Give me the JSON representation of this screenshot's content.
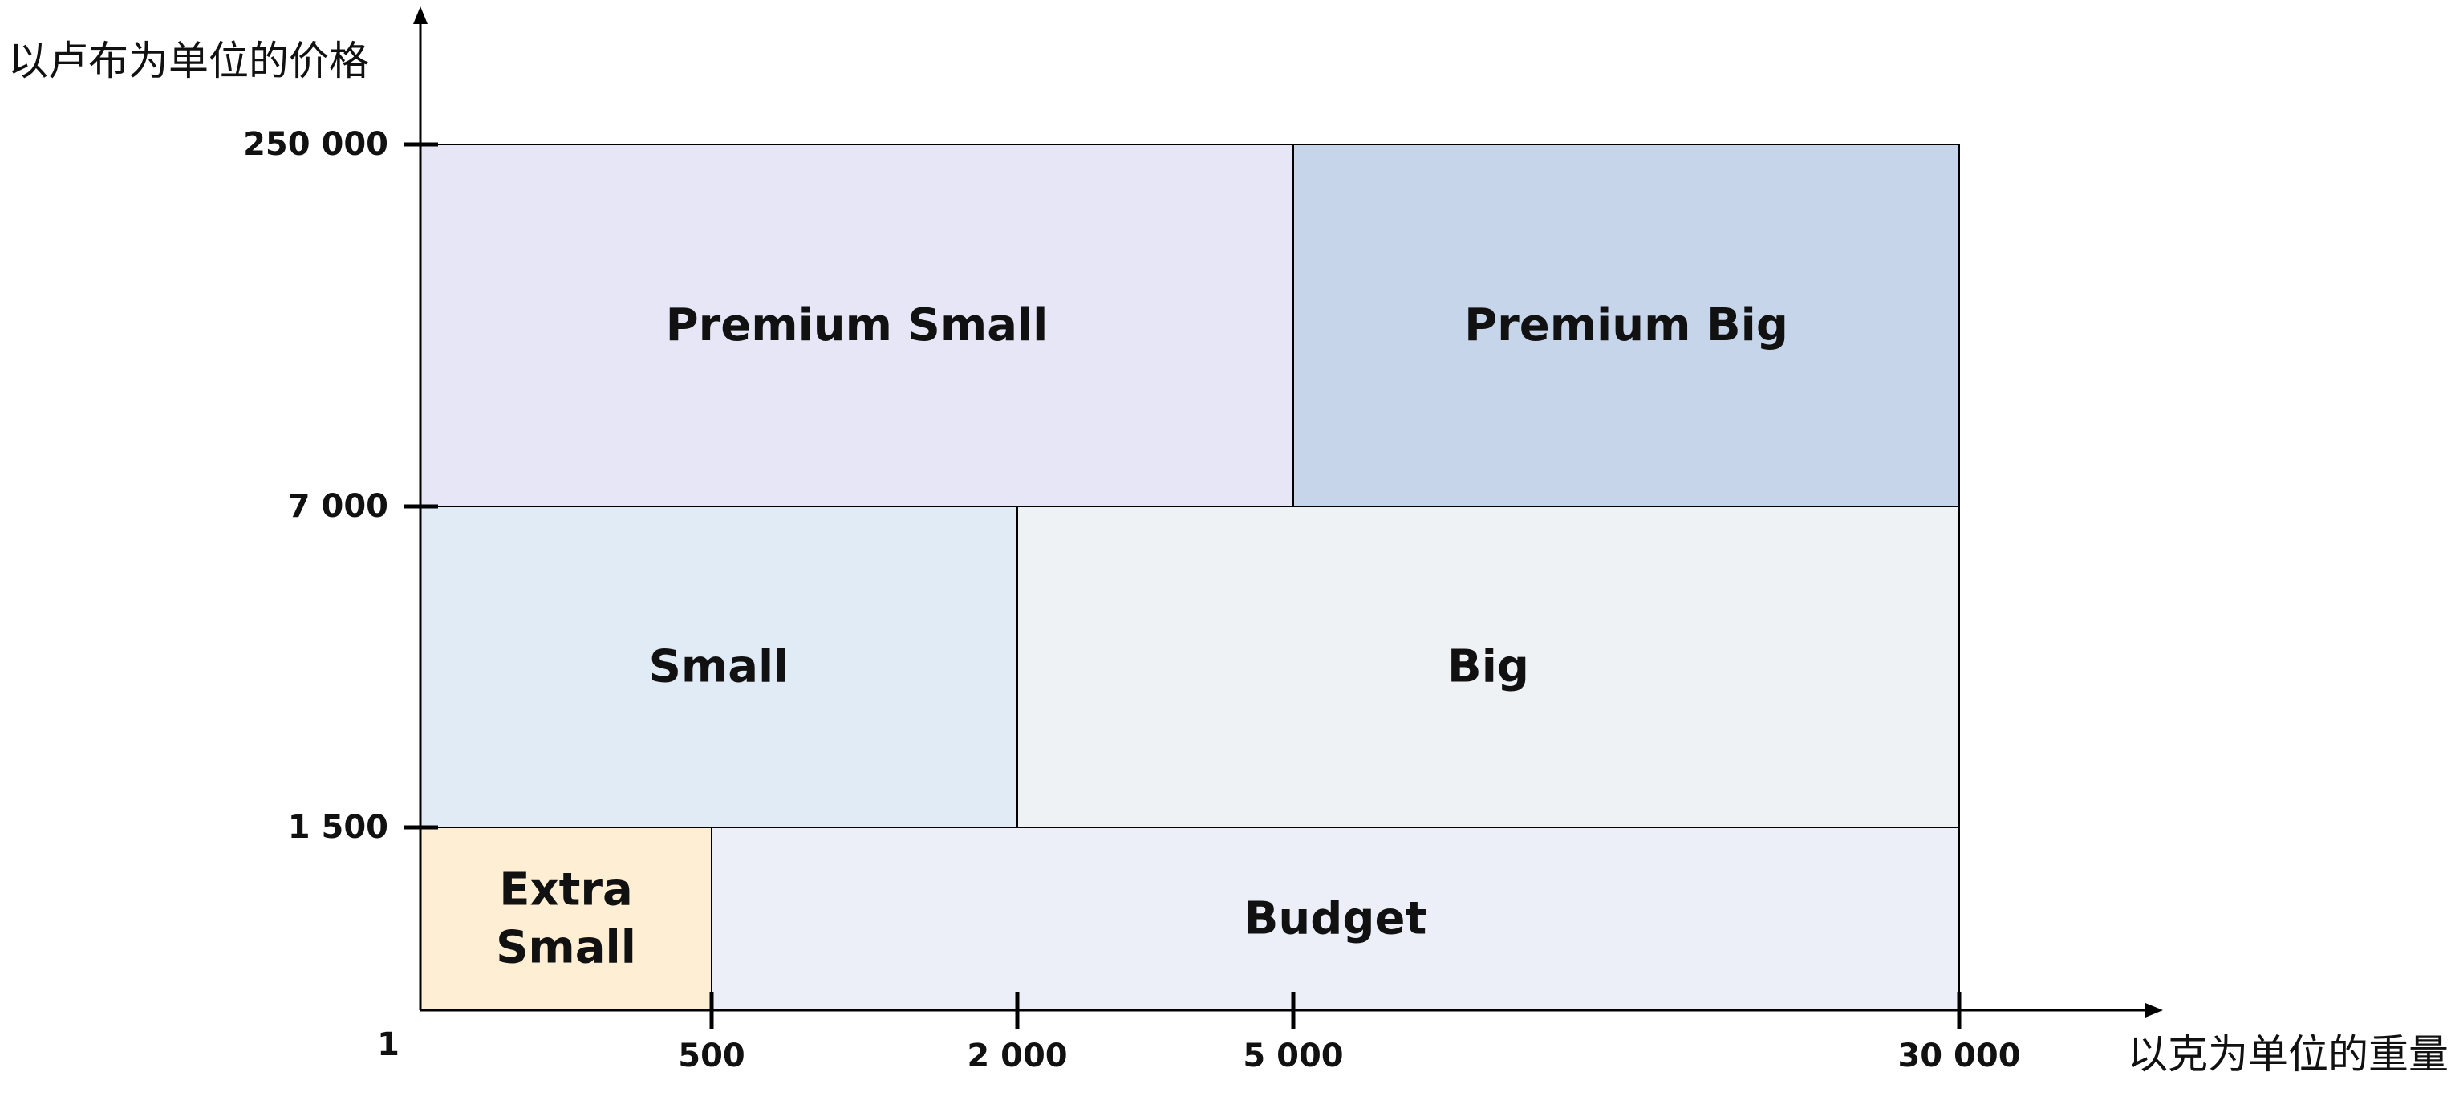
{
  "axes": {
    "y_title": "以卢布为单位的价格",
    "x_title": "以克为单位的重量",
    "origin_label": "1",
    "y_ticks": [
      {
        "key": "250000",
        "label": "250 000"
      },
      {
        "key": "7000",
        "label": "7 000"
      },
      {
        "key": "1500",
        "label": "1 500"
      }
    ],
    "x_ticks": [
      {
        "key": "500",
        "label": "500"
      },
      {
        "key": "2000",
        "label": "2 000"
      },
      {
        "key": "5000",
        "label": "5 000"
      },
      {
        "key": "30000",
        "label": "30 000"
      }
    ]
  },
  "segments": [
    {
      "id": "premium-small",
      "lines": [
        "Premium Small"
      ],
      "x_from": "1",
      "x_to": "5000",
      "y_from": "7000",
      "y_to": "250000",
      "color": "#e6e6f7"
    },
    {
      "id": "premium-big",
      "lines": [
        "Premium Big"
      ],
      "x_from": "5000",
      "x_to": "30000",
      "y_from": "7000",
      "y_to": "250000",
      "color": "#c7d5eb"
    },
    {
      "id": "small",
      "lines": [
        "Small"
      ],
      "x_from": "1",
      "x_to": "2000",
      "y_from": "1500",
      "y_to": "7000",
      "color": "#e0ebf6"
    },
    {
      "id": "big",
      "lines": [
        "Big"
      ],
      "x_from": "2000",
      "x_to": "30000",
      "y_from": "1500",
      "y_to": "7000",
      "color": "#eef2f5"
    },
    {
      "id": "extra-small",
      "lines": [
        "Extra",
        "Small"
      ],
      "x_from": "1",
      "x_to": "500",
      "y_from": "1",
      "y_to": "1500",
      "color": "#fdeed4"
    },
    {
      "id": "budget",
      "lines": [
        "Budget"
      ],
      "x_from": "500",
      "x_to": "30000",
      "y_from": "1",
      "y_to": "1500",
      "color": "#eceff7"
    }
  ]
}
